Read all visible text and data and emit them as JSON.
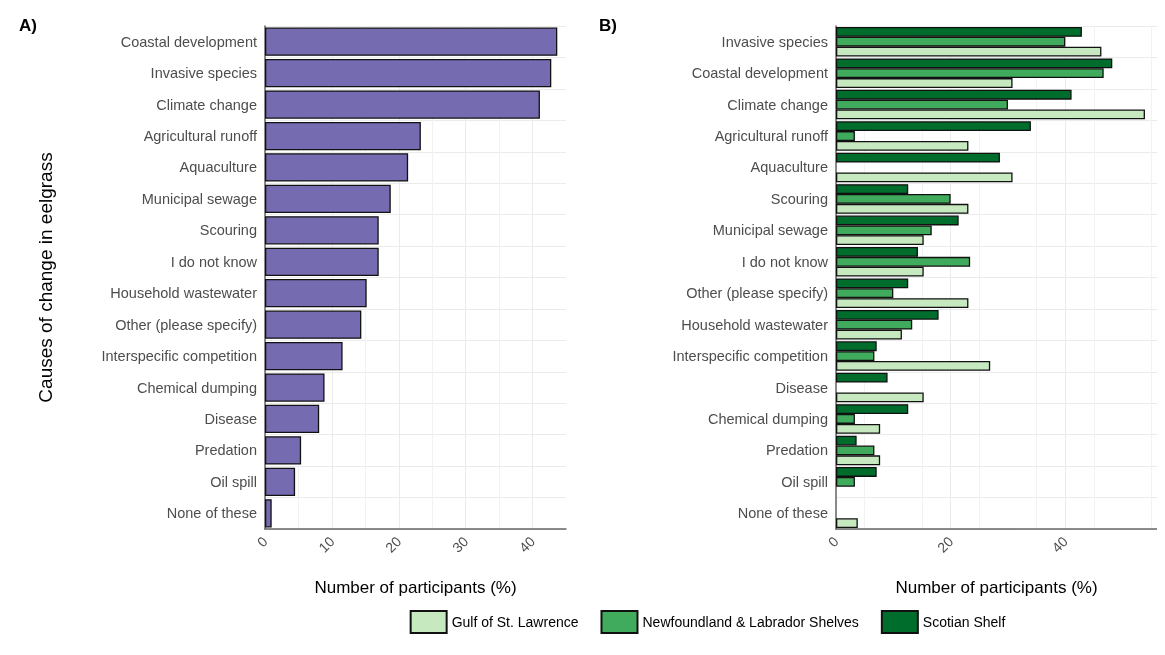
{
  "chart_data": [
    {
      "type": "bar",
      "title": "A)",
      "orientation": "horizontal",
      "xlabel": "Number of participants (%)",
      "ylabel": "Causes of change in eelgrass",
      "categories": [
        "Coastal development",
        "Invasive species",
        "Climate change",
        "Agricultural runoff",
        "Aquaculture",
        "Municipal sewage",
        "Scouring",
        "I do not know",
        "Household wastewater",
        "Other (please specify)",
        "Interspecific competition",
        "Chemical dumping",
        "Disease",
        "Predation",
        "Oil spill",
        "None of these"
      ],
      "values": [
        43.7,
        42.8,
        41.1,
        23.3,
        21.4,
        18.8,
        17.0,
        17.0,
        15.2,
        14.4,
        11.6,
        8.9,
        8.1,
        5.4,
        4.5,
        1.0
      ],
      "color": "#756bb1",
      "xlim": [
        0,
        45
      ],
      "xticks": [
        0,
        10,
        20,
        30,
        40
      ],
      "grid": true,
      "legend": false
    },
    {
      "type": "bar",
      "title": "B)",
      "orientation": "horizontal",
      "xlabel": "Number of participants (%)",
      "categories": [
        "Invasive species",
        "Coastal development",
        "Climate change",
        "Agricultural runoff",
        "Aquaculture",
        "Scouring",
        "Municipal sewage",
        "I do not know",
        "Other (please specify)",
        "Household wastewater",
        "Interspecific competition",
        "Disease",
        "Chemical dumping",
        "Predation",
        "Oil spill",
        "None of these"
      ],
      "series": [
        {
          "name": "Scotian Shelf",
          "color": "#006d2c",
          "values": [
            42.9,
            48.2,
            41.1,
            34.0,
            28.6,
            12.6,
            21.4,
            14.3,
            12.6,
            17.9,
            7.1,
            9.0,
            12.6,
            3.6,
            7.1,
            0
          ]
        },
        {
          "name": "Newfoundland & Labrador Shelves",
          "color": "#41ab5d",
          "values": [
            40.0,
            46.7,
            30.0,
            3.3,
            0,
            20.0,
            16.7,
            23.4,
            10.0,
            13.3,
            6.7,
            0,
            3.3,
            6.7,
            3.3,
            0
          ]
        },
        {
          "name": "Gulf of St. Lawrence",
          "color": "#c7e9c0",
          "values": [
            46.3,
            30.8,
            53.9,
            23.1,
            30.8,
            23.1,
            15.3,
            15.3,
            23.1,
            11.5,
            26.9,
            15.3,
            7.7,
            7.7,
            0,
            3.8
          ]
        }
      ],
      "xlim": [
        0,
        56
      ],
      "xticks": [
        0,
        20,
        40
      ],
      "grid": true,
      "legend": "bottom"
    }
  ]
}
